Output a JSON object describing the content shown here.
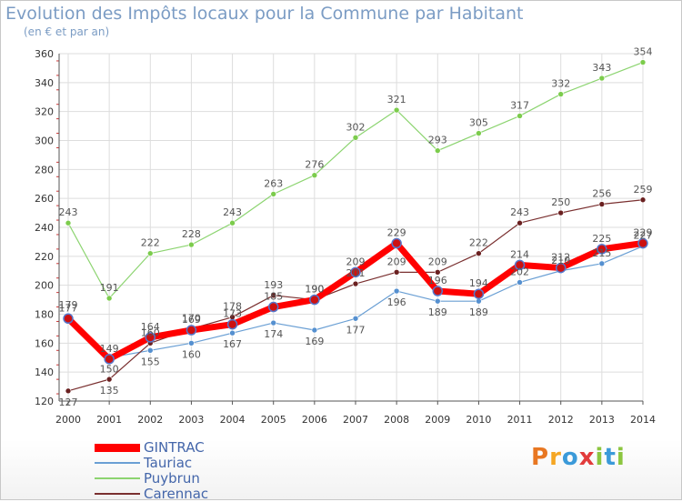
{
  "title": "Evolution des Impôts locaux pour la Commune par Habitant",
  "subtitle": "(en € et par an)",
  "logo": {
    "text": "Proxiti",
    "colors": [
      "#e87722",
      "#f5a623",
      "#3b9ad9",
      "#e23b3b",
      "#8cc63f",
      "#3b9ad9",
      "#8cc63f"
    ]
  },
  "chart_data": {
    "type": "line",
    "title": "Evolution des Impôts locaux pour la Commune par Habitant",
    "subtitle": "(en € et par an)",
    "x": [
      2000,
      2001,
      2002,
      2003,
      2004,
      2005,
      2006,
      2007,
      2008,
      2009,
      2010,
      2011,
      2012,
      2013,
      2014
    ],
    "ylim": [
      120,
      360
    ],
    "yticks": [
      120,
      140,
      160,
      180,
      200,
      220,
      240,
      260,
      280,
      300,
      320,
      340,
      360
    ],
    "grid": true,
    "legend_position": "bottom-left",
    "series": [
      {
        "name": "GINTRAC",
        "color": "#ff0000",
        "width": 7,
        "point_color": "#cc1111",
        "values": [
          177,
          149,
          164,
          169,
          173,
          185,
          190,
          209,
          229,
          196,
          194,
          214,
          212,
          225,
          229
        ]
      },
      {
        "name": "Tauriac",
        "color": "#6a9fd4",
        "width": 1.2,
        "point_color": "#5590d0",
        "values": [
          179,
          150,
          155,
          160,
          167,
          174,
          169,
          177,
          196,
          189,
          189,
          202,
          210,
          215,
          227
        ]
      },
      {
        "name": "Puybrun",
        "color": "#8cd470",
        "width": 1.2,
        "point_color": "#7ccc4c",
        "values": [
          243,
          191,
          222,
          228,
          243,
          263,
          276,
          302,
          321,
          293,
          305,
          317,
          332,
          343,
          354
        ]
      },
      {
        "name": "Carennac",
        "color": "#7a3030",
        "width": 1.2,
        "point_color": "#6a2020",
        "values": [
          127,
          135,
          160,
          170,
          178,
          193,
          190,
          201,
          209,
          209,
          222,
          243,
          250,
          256,
          259
        ]
      }
    ]
  }
}
